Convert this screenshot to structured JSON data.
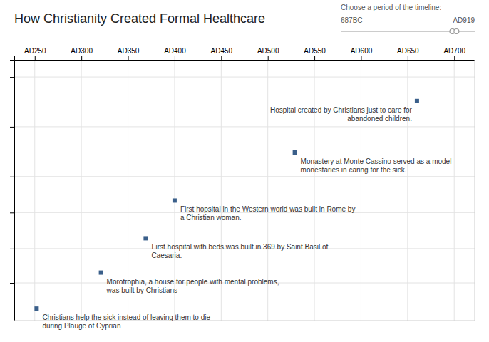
{
  "chart_data": {
    "type": "scatter",
    "title": "How Christianity Created Formal Healthcare",
    "x": [
      660,
      529,
      400,
      369,
      321,
      252
    ],
    "values": [
      6.3,
      4.8,
      3.4,
      2.3,
      1.3,
      0.25
    ],
    "labels": [
      "Hospital created by Christians just to care for abandoned children.",
      "Monastery at Monte Cassino served as a model monestaries in caring for the sick.",
      "First hopsital in the Western world was built in Rome by a Christian woman.",
      "First hospital with beds was built in 369 by Saint Basil of Caesaria.",
      "Morotrophia, a house for people with mental problems, was built by Christians",
      "Christians help the sick instead of leaving them to die during Plauge of Cyprian"
    ],
    "color": "#3a5f8a",
    "marker": "square",
    "xlim": [
      228,
      722
    ],
    "xticks": [
      {
        "value": 250,
        "label": "AD250"
      },
      {
        "value": 300,
        "label": "AD300"
      },
      {
        "value": 350,
        "label": "AD350"
      },
      {
        "value": 400,
        "label": "AD400"
      },
      {
        "value": 450,
        "label": "AD450"
      },
      {
        "value": 500,
        "label": "AD500"
      },
      {
        "value": 550,
        "label": "AD550"
      },
      {
        "value": 600,
        "label": "AD600"
      },
      {
        "value": 650,
        "label": "AD650"
      },
      {
        "value": 700,
        "label": "AD700"
      }
    ],
    "ylim": [
      -0.1,
      7.5
    ],
    "yticks": [
      1,
      2,
      3.05,
      4.1,
      5.55,
      7
    ],
    "grid": true,
    "tick_labels": "x",
    "slider": {
      "label": "Choose a period of the timeline:",
      "min": {
        "value": -687,
        "label": "687BC"
      },
      "max": {
        "value": 919,
        "label": "AD919"
      },
      "values": [
        650,
        700
      ]
    }
  }
}
